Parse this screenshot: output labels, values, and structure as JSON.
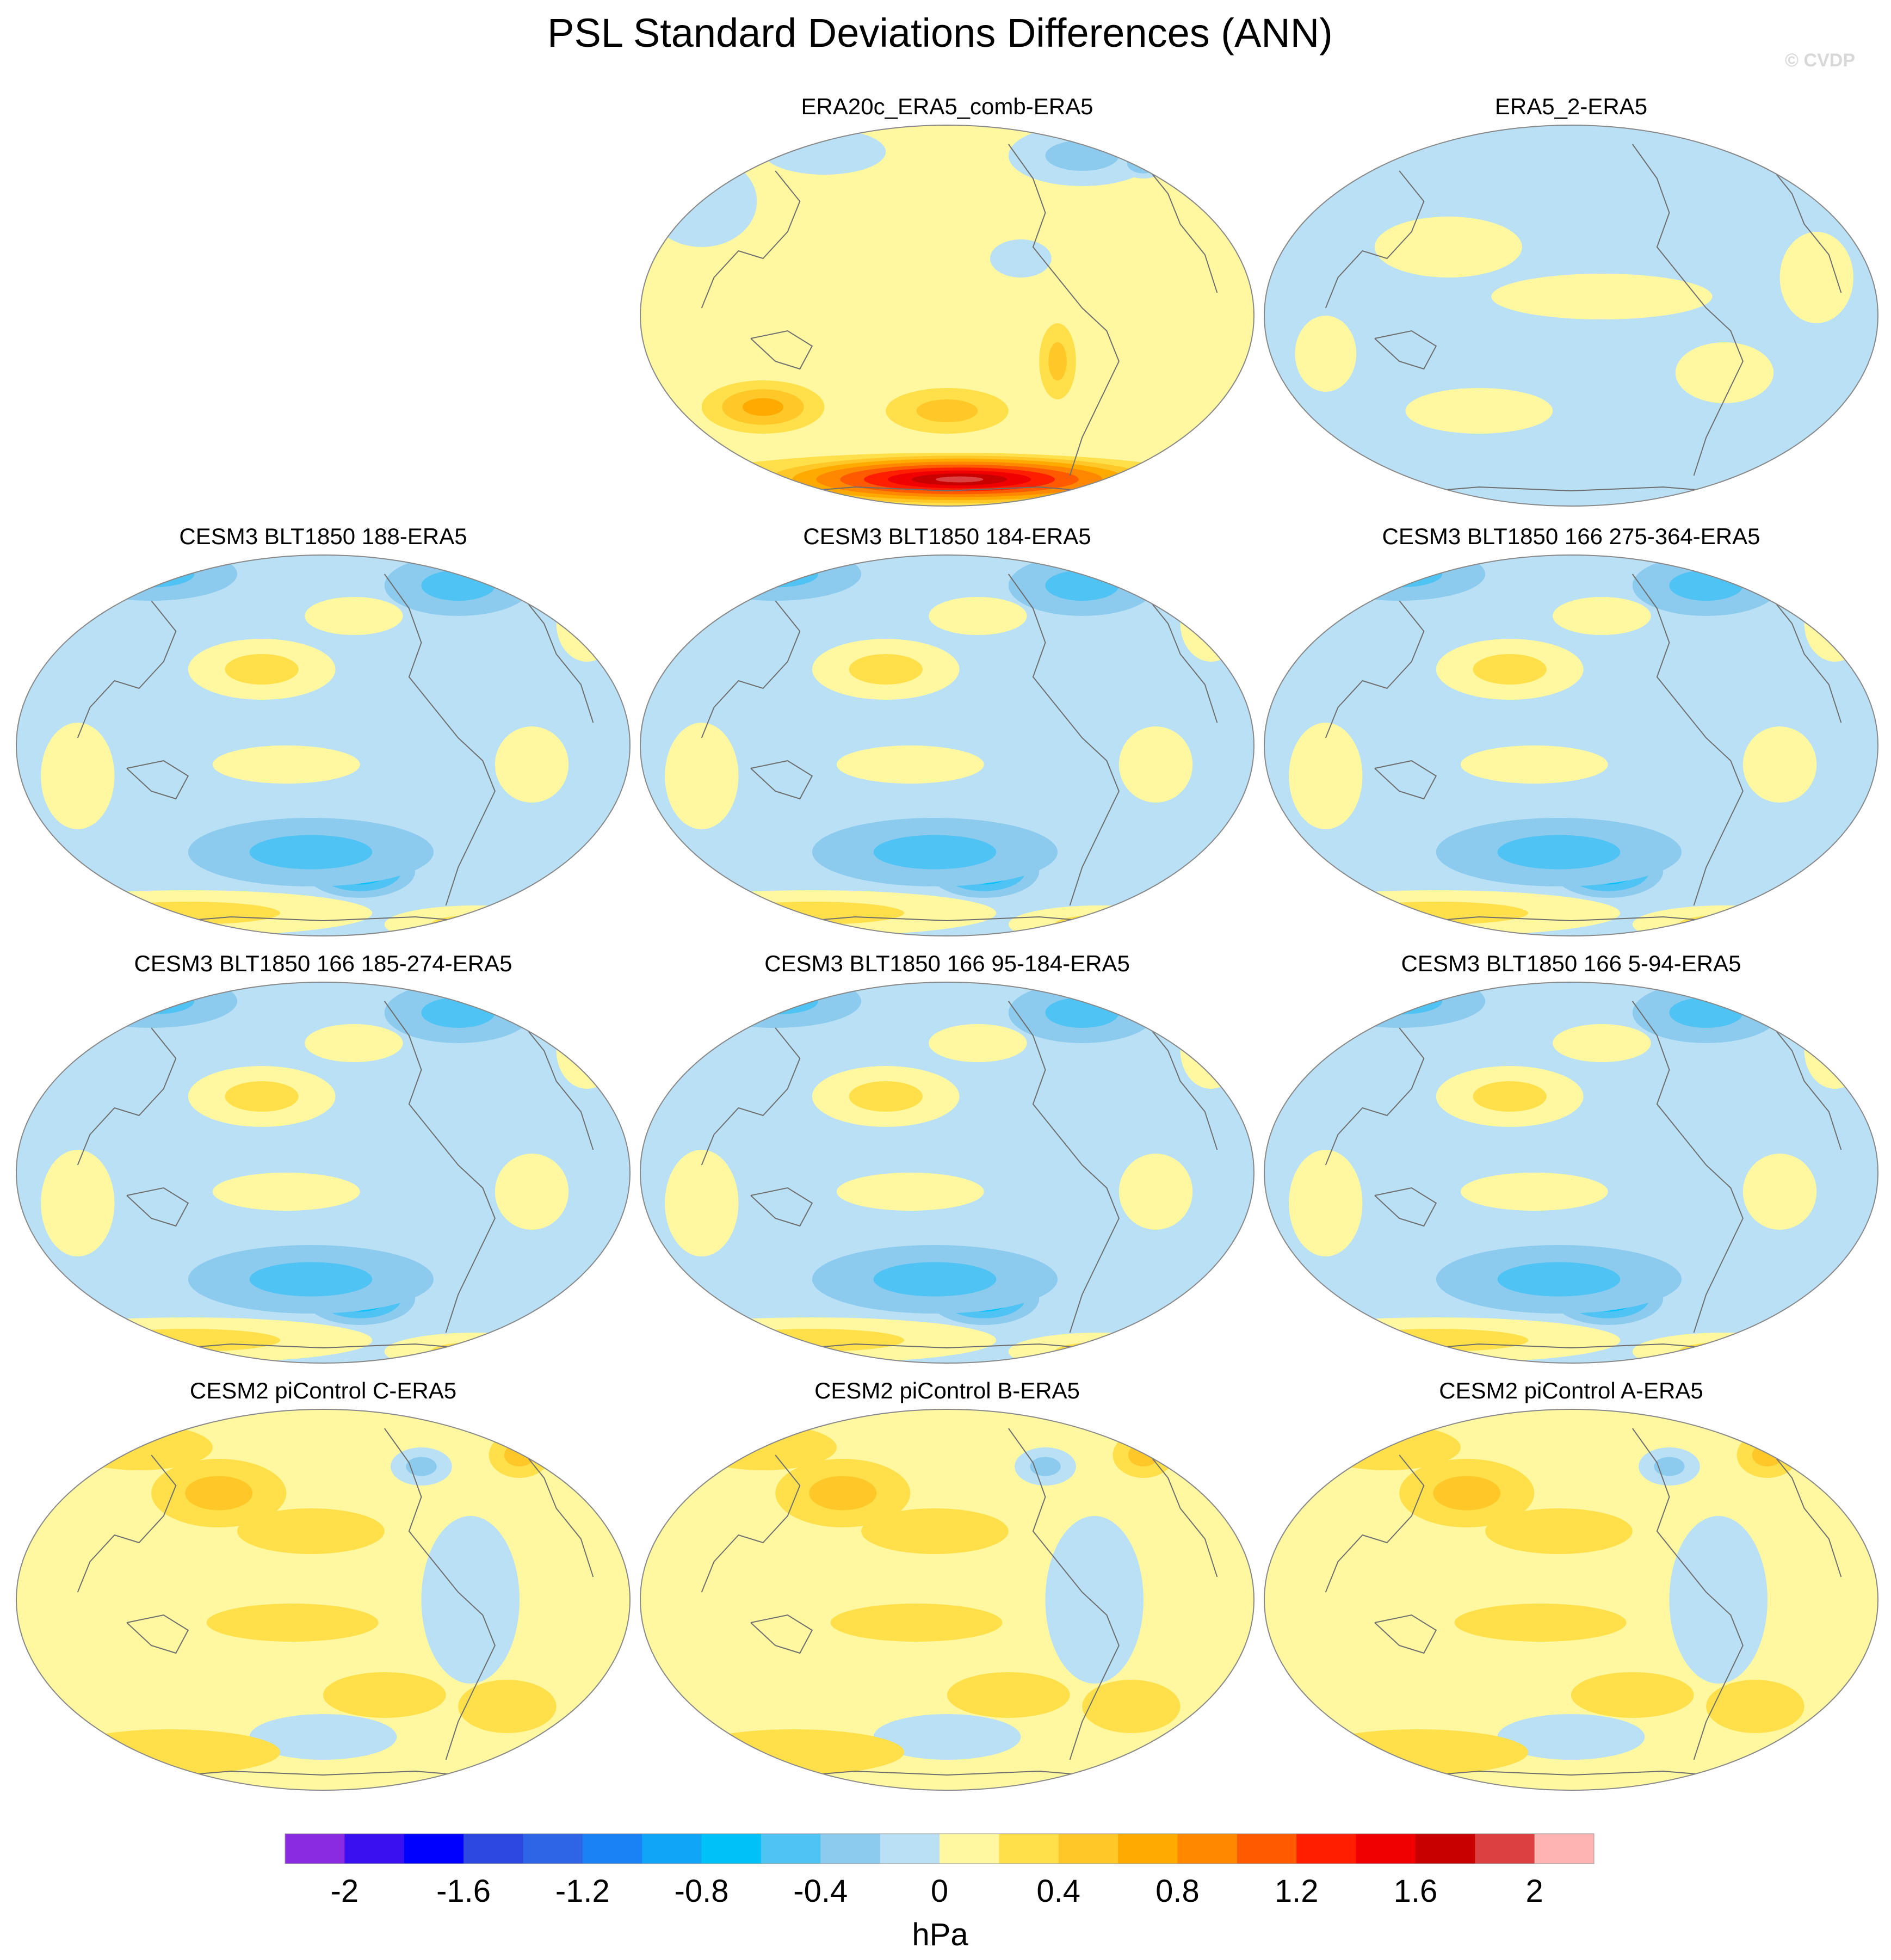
{
  "figure": {
    "title": "PSL Standard Deviations Differences (ANN)",
    "watermark": "© CVDP"
  },
  "chart_data": {
    "type": "heatmap",
    "projection": "robinson",
    "title": "PSL Standard Deviations Differences (ANN)",
    "units": "hPa",
    "panels": [
      {
        "title": "ERA20c_ERA5_comb-ERA5",
        "style": "era20c"
      },
      {
        "title": "ERA5_2-ERA5",
        "style": "era5"
      },
      {
        "title": "CESM3 BLT1850 188-ERA5",
        "style": "cesm3"
      },
      {
        "title": "CESM3 BLT1850 184-ERA5",
        "style": "cesm3"
      },
      {
        "title": "CESM3 BLT1850 166 275-364-ERA5",
        "style": "cesm3"
      },
      {
        "title": "CESM3 BLT1850 166 185-274-ERA5",
        "style": "cesm3"
      },
      {
        "title": "CESM3 BLT1850 166 95-184-ERA5",
        "style": "cesm3"
      },
      {
        "title": "CESM3 BLT1850 166 5-94-ERA5",
        "style": "cesm3"
      },
      {
        "title": "CESM2 piControl C-ERA5",
        "style": "cesm2"
      },
      {
        "title": "CESM2 piControl B-ERA5",
        "style": "cesm2"
      },
      {
        "title": "CESM2 piControl A-ERA5",
        "style": "cesm2"
      }
    ],
    "colorbar": {
      "label": "hPa",
      "ticks": [
        "-2",
        "-1.6",
        "-1.2",
        "-0.8",
        "-0.4",
        "0",
        "0.4",
        "0.8",
        "1.2",
        "1.6",
        "2"
      ],
      "tick_values": [
        -2,
        -1.6,
        -1.2,
        -0.8,
        -0.4,
        0,
        0.4,
        0.8,
        1.2,
        1.6,
        2
      ],
      "range": [
        -2.2,
        2.2
      ],
      "step": 0.2,
      "colors": [
        "#8a2be2",
        "#3b10f0",
        "#0000ff",
        "#2c48e0",
        "#2e64e6",
        "#1a82f5",
        "#11a5f7",
        "#00c2f9",
        "#4fc3f3",
        "#8ccbee",
        "#b9e0f5",
        "#fff8a0",
        "#ffe04a",
        "#ffc828",
        "#ffaa00",
        "#ff8800",
        "#ff5a00",
        "#ff1e00",
        "#f00000",
        "#c80000",
        "#dc4040",
        "#ffb4b4"
      ]
    }
  }
}
